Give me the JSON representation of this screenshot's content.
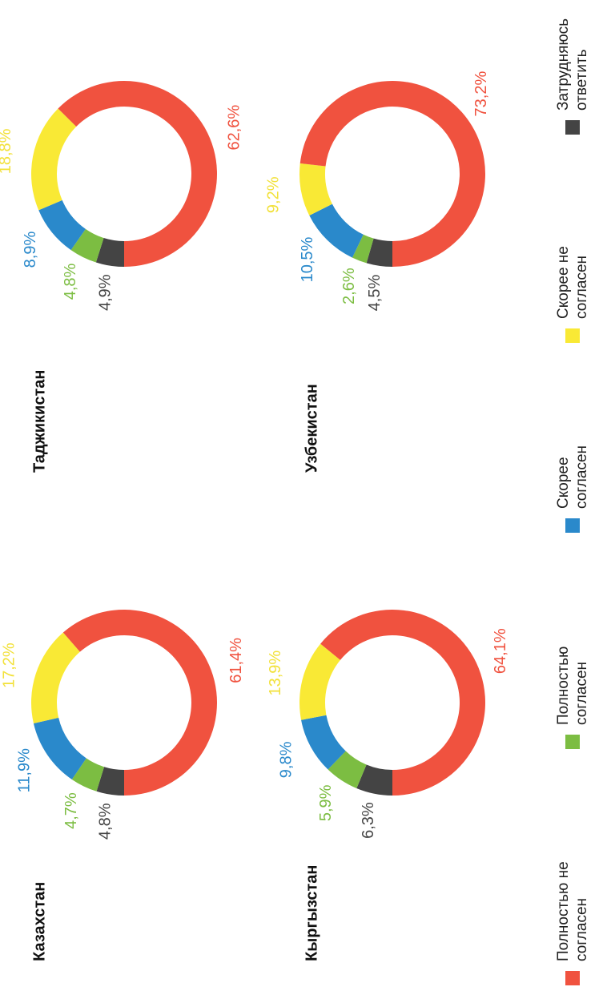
{
  "chart_data": [
    {
      "type": "pie",
      "title": "Казахстан",
      "categories": [
        "Затрудняюсь ответить",
        "Полностью согласен",
        "Скорее согласен",
        "Скорее не согласен",
        "Полностью не согласен"
      ],
      "values": [
        4.8,
        4.7,
        11.9,
        17.2,
        61.4
      ],
      "value_labels": [
        "4,8%",
        "4,7%",
        "11,9%",
        "17,2%",
        "61,4%"
      ],
      "colors": [
        "#444444",
        "#7cbd42",
        "#2a89cb",
        "#f9e935",
        "#f0523f"
      ]
    },
    {
      "type": "pie",
      "title": "Таджикистан",
      "categories": [
        "Затрудняюсь ответить",
        "Полностью согласен",
        "Скорее согласен",
        "Скорее не согласен",
        "Полностью не согласен"
      ],
      "values": [
        4.9,
        4.8,
        8.9,
        18.8,
        62.6
      ],
      "value_labels": [
        "4,9%",
        "4,8%",
        "8,9%",
        "18,8%",
        "62,6%"
      ],
      "colors": [
        "#444444",
        "#7cbd42",
        "#2a89cb",
        "#f9e935",
        "#f0523f"
      ]
    },
    {
      "type": "pie",
      "title": "Кыргызстан",
      "categories": [
        "Затрудняюсь ответить",
        "Полностью согласен",
        "Скорее согласен",
        "Скорее не согласен",
        "Полностью не согласен"
      ],
      "values": [
        6.3,
        5.9,
        9.8,
        13.9,
        64.1
      ],
      "value_labels": [
        "6,3%",
        "5,9%",
        "9,8%",
        "13,9%",
        "64,1%"
      ],
      "colors": [
        "#444444",
        "#7cbd42",
        "#2a89cb",
        "#f9e935",
        "#f0523f"
      ]
    },
    {
      "type": "pie",
      "title": "Узбекистан",
      "categories": [
        "Затрудняюсь ответить",
        "Полностью согласен",
        "Скорее согласен",
        "Скорее не согласен",
        "Полностью не согласен"
      ],
      "values": [
        4.5,
        2.6,
        10.5,
        9.2,
        73.2
      ],
      "value_labels": [
        "4,5%",
        "2,6%",
        "10,5%",
        "9,2%",
        "73,2%"
      ],
      "colors": [
        "#444444",
        "#7cbd42",
        "#2a89cb",
        "#f9e935",
        "#f0523f"
      ]
    }
  ]
}
